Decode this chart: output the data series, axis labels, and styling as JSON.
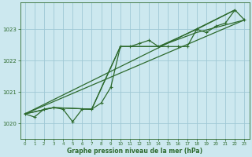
{
  "title": "Graphe pression niveau de la mer (hPa)",
  "background_color": "#cce8ef",
  "grid_color": "#9fc8d5",
  "line_color": "#2d6a2d",
  "xlim": [
    -0.5,
    23.5
  ],
  "ylim": [
    1019.5,
    1023.85
  ],
  "yticks": [
    1020,
    1021,
    1022,
    1023
  ],
  "xticks": [
    0,
    1,
    2,
    3,
    4,
    5,
    6,
    7,
    8,
    9,
    10,
    11,
    12,
    13,
    14,
    15,
    16,
    17,
    18,
    19,
    20,
    21,
    22,
    23
  ],
  "detailed_x": [
    0,
    1,
    2,
    3,
    4,
    5,
    6,
    7,
    8,
    9,
    10,
    11,
    12,
    13,
    14,
    15,
    16,
    17,
    18,
    19,
    20,
    21,
    22,
    23
  ],
  "detailed_y": [
    1020.3,
    1020.2,
    1020.45,
    1020.5,
    1020.45,
    1020.05,
    1020.45,
    1020.45,
    1020.65,
    1021.15,
    1022.45,
    1022.45,
    1022.55,
    1022.65,
    1022.45,
    1022.45,
    1022.45,
    1022.45,
    1023.0,
    1022.9,
    1023.1,
    1023.2,
    1023.62,
    1023.3
  ],
  "trend1_x": [
    0,
    22
  ],
  "trend1_y": [
    1020.3,
    1023.62
  ],
  "trend2_x": [
    0,
    23
  ],
  "trend2_y": [
    1020.3,
    1023.3
  ],
  "smooth1_x": [
    0,
    3,
    7,
    10,
    14,
    18,
    22
  ],
  "smooth1_y": [
    1020.3,
    1020.5,
    1020.45,
    1022.45,
    1022.45,
    1023.0,
    1023.62
  ],
  "smooth2_x": [
    0,
    3,
    7,
    10,
    14,
    18,
    23
  ],
  "smooth2_y": [
    1020.3,
    1020.5,
    1020.45,
    1022.45,
    1022.45,
    1022.9,
    1023.3
  ]
}
